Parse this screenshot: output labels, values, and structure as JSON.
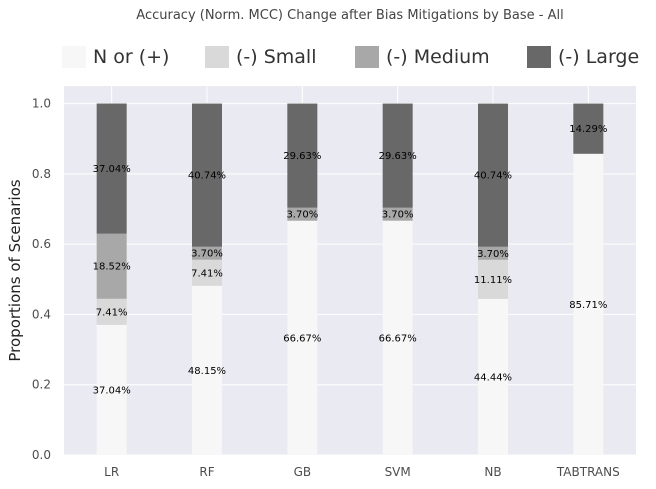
{
  "chart_data": {
    "type": "bar",
    "stacked": true,
    "title": "Accuracy (Norm. MCC) Change after Bias Mitigations by Base - All",
    "xlabel": "",
    "ylabel": "Proportions of Scenarios",
    "ylim": [
      0,
      1.05
    ],
    "yticks": [
      0.0,
      0.2,
      0.4,
      0.6,
      0.8,
      1.0
    ],
    "ytick_labels": [
      "0.0",
      "0.2",
      "0.4",
      "0.6",
      "0.8",
      "1.0"
    ],
    "grid": true,
    "legend_position": "top",
    "categories": [
      "LR",
      "RF",
      "GB",
      "SVM",
      "NB",
      "TABTRANS"
    ],
    "series": [
      {
        "name": "N or (+)",
        "color": "#f7f7f7",
        "values": [
          0.3704,
          0.4815,
          0.6667,
          0.6667,
          0.4444,
          0.8571
        ],
        "labels": [
          "37.04%",
          "48.15%",
          "66.67%",
          "66.67%",
          "44.44%",
          "85.71%"
        ]
      },
      {
        "name": "(-) Small",
        "color": "#d9d9d9",
        "values": [
          0.0741,
          0.0741,
          0.0,
          0.0,
          0.1111,
          0.0
        ],
        "labels": [
          "7.41%",
          "7.41%",
          "",
          "",
          "11.11%",
          ""
        ]
      },
      {
        "name": "(-) Medium",
        "color": "#a8a8a8",
        "values": [
          0.1852,
          0.037,
          0.037,
          0.037,
          0.037,
          0.0
        ],
        "labels": [
          "18.52%",
          "3.70%",
          "3.70%",
          "3.70%",
          "3.70%",
          ""
        ]
      },
      {
        "name": "(-) Large",
        "color": "#686868",
        "values": [
          0.3704,
          0.4074,
          0.2963,
          0.2963,
          0.4074,
          0.1429
        ],
        "labels": [
          "37.04%",
          "40.74%",
          "29.63%",
          "29.63%",
          "40.74%",
          "14.29%"
        ]
      }
    ]
  },
  "colors": {
    "plot_background": "#eaeaf2",
    "grid": "#ffffff"
  }
}
